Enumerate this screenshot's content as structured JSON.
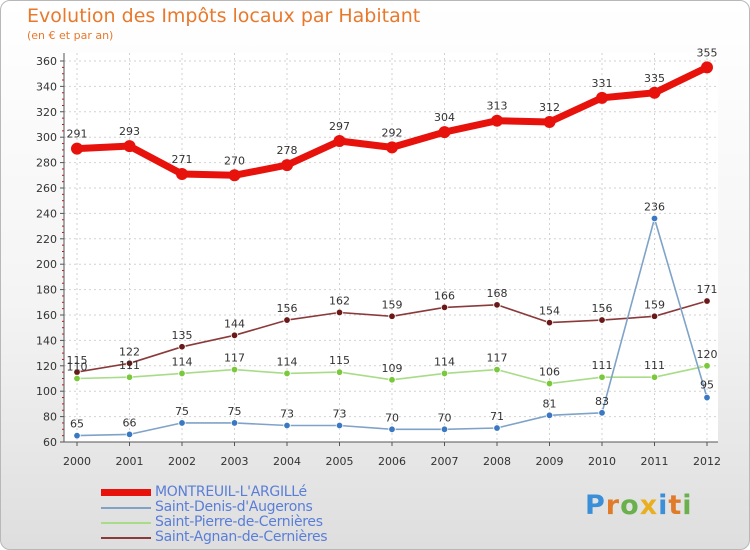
{
  "title": "Evolution des Impôts locaux par Habitant",
  "subtitle": "(en € et par an)",
  "logo": {
    "letters": [
      "P",
      "r",
      "o",
      "x",
      "i",
      "t",
      "i"
    ],
    "colors": [
      "#3a8fd8",
      "#e07b2a",
      "#6ab04c",
      "#e8b020",
      "#3a8fd8",
      "#e07b2a",
      "#6ab04c"
    ]
  },
  "chart_data": {
    "type": "line",
    "title": "Evolution des Impôts locaux par Habitant",
    "subtitle": "(en € et par an)",
    "xlabel": "",
    "ylabel": "",
    "x": [
      "2000",
      "2001",
      "2002",
      "2003",
      "2004",
      "2005",
      "2006",
      "2007",
      "2008",
      "2009",
      "2010",
      "2011",
      "2012"
    ],
    "ylim": [
      60,
      360
    ],
    "yticks": [
      "60",
      "80",
      "100",
      "120",
      "140",
      "160",
      "180",
      "200",
      "220",
      "240",
      "260",
      "280",
      "300",
      "320",
      "340",
      "360"
    ],
    "grid": true,
    "legend_position": "bottom-left",
    "series": [
      {
        "name": "MONTREUIL-L'ARGILLé",
        "color": "#e8120c",
        "marker_color": "#e8120c",
        "thick": true,
        "values": [
          291,
          293,
          271,
          270,
          278,
          297,
          292,
          304,
          313,
          312,
          331,
          335,
          355
        ],
        "labels": [
          "291",
          "293",
          "271",
          "270",
          "278",
          "297",
          "292",
          "304",
          "313",
          "312",
          "331",
          "335",
          "355"
        ]
      },
      {
        "name": "Saint-Denis-d'Augerons",
        "color": "#7fa3c8",
        "marker_color": "#3b78c2",
        "thick": false,
        "values": [
          65,
          66,
          75,
          75,
          73,
          73,
          70,
          70,
          71,
          81,
          83,
          236,
          95
        ],
        "labels": [
          "65",
          "66",
          "75",
          "75",
          "73",
          "73",
          "70",
          "70",
          "71",
          "81",
          "83",
          "236",
          "95"
        ]
      },
      {
        "name": "Saint-Pierre-de-Cernières",
        "color": "#a8dc88",
        "marker_color": "#7ac83c",
        "thick": false,
        "values": [
          110,
          111,
          114,
          117,
          114,
          115,
          109,
          114,
          117,
          106,
          111,
          111,
          120
        ],
        "labels": [
          "110",
          "111",
          "114",
          "117",
          "114",
          "115",
          "109",
          "114",
          "117",
          "106",
          "111",
          "111",
          "120"
        ]
      },
      {
        "name": "Saint-Agnan-de-Cernières",
        "color": "#8a3a3a",
        "marker_color": "#6a1818",
        "thick": false,
        "values": [
          115,
          122,
          135,
          144,
          156,
          162,
          159,
          166,
          168,
          154,
          156,
          159,
          171
        ],
        "labels": [
          "115",
          "122",
          "135",
          "144",
          "156",
          "162",
          "159",
          "166",
          "168",
          "154",
          "156",
          "159",
          "171"
        ]
      }
    ]
  }
}
